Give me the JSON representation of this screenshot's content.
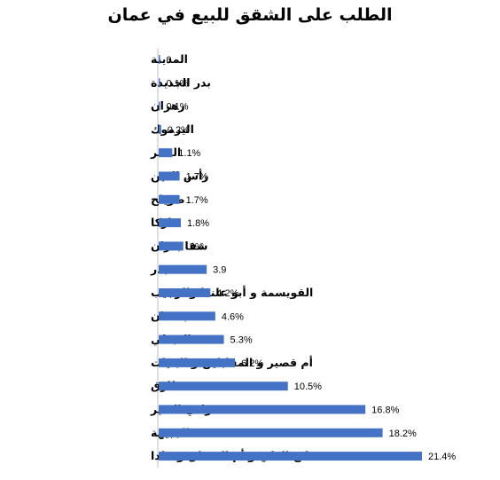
{
  "chart_data": {
    "type": "bar",
    "orientation": "horizontal",
    "title": "الطلب على الشقق للبيع في عمان",
    "bar_color": "#4472C4",
    "categories": [
      "المدينة",
      "بدر الجديدة",
      "زهران",
      "اليرموك",
      "النصر",
      "رأس العين",
      "صويلح",
      "ماركا",
      "شفا بدران",
      "بدر",
      "القويسمة و أبو علندا والرجيب",
      "بسمان",
      "العبدلي",
      "أم قصير و المقابلين و البنيات",
      "طارق",
      "وادي السير",
      "الجبيهة",
      "تلاع العلي و أم السماق و خلدا"
    ],
    "values": [
      0,
      0.1,
      0.1,
      0.2,
      1.1,
      1.7,
      1.7,
      1.8,
      2,
      3.9,
      4.2,
      4.6,
      5.3,
      6.2,
      10.5,
      16.8,
      18.2,
      21.4
    ],
    "value_labels": [
      "0",
      "0.1%",
      "0.1%",
      "0.2%",
      "1.1%",
      "1.7%",
      "1.7%",
      "1.8%",
      "2%",
      "3.9",
      "4.2%",
      "4.6%",
      "5.3%",
      "6.2%",
      "10.5%",
      "16.8%",
      "18.2%",
      "21.4%"
    ],
    "xlim": [
      0,
      21.4
    ],
    "grid": false,
    "legend": "none"
  }
}
